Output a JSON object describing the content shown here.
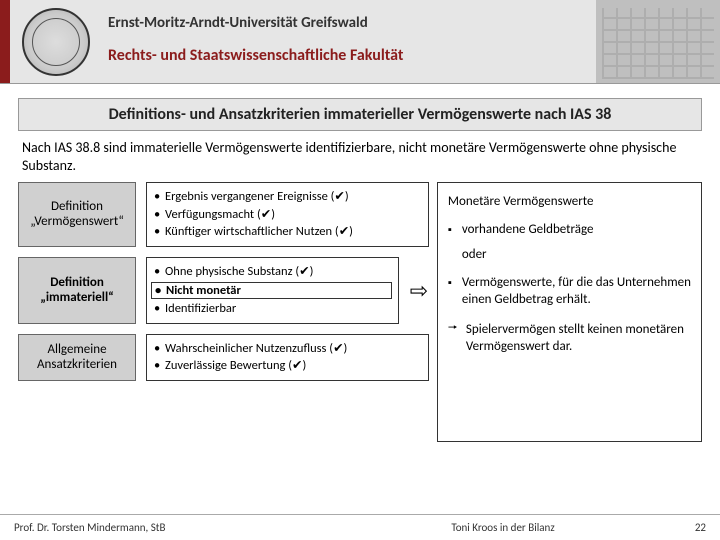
{
  "header": {
    "university": "Ernst-Moritz-Arndt-Universität Greifswald",
    "faculty": "Rechts- und Staatswissenschaftliche Fakultät"
  },
  "title": "Definitions- und Ansatzkriterien immaterieller Vermögenswerte nach IAS 38",
  "intro": "Nach IAS 38.8 sind immaterielle Vermögenswerte identifizierbare, nicht monetäre Vermögenswerte ohne physische Substanz.",
  "rows": [
    {
      "label": "Definition „Vermögenswert“",
      "bold": false,
      "items": [
        {
          "text": "Ergebnis vergangener Ereignisse   (✔)",
          "boxed": false
        },
        {
          "text": "Verfügungsmacht    (✔)",
          "boxed": false
        },
        {
          "text": "Künftiger wirtschaftlicher Nutzen (✔)",
          "boxed": false
        }
      ]
    },
    {
      "label": "Definition „immateriell“",
      "bold": true,
      "items": [
        {
          "text": "Ohne physische Substanz (✔)",
          "boxed": false
        },
        {
          "text": "Nicht monetär",
          "boxed": true
        },
        {
          "text": "Identifizierbar",
          "boxed": false
        }
      ]
    },
    {
      "label": "Allgemeine Ansatzkriterien",
      "bold": false,
      "items": [
        {
          "text": "Wahrscheinlicher Nutzenzufluss (✔)",
          "boxed": false
        },
        {
          "text": "Zuverlässige Bewertung   (✔)",
          "boxed": false
        }
      ]
    }
  ],
  "right": {
    "heading": "Monetäre Vermögenswerte",
    "item1": "vorhandene Geldbeträge",
    "oder": "oder",
    "item2": "Vermögenswerte, für die das Unternehmen einen Geldbetrag erhält.",
    "conclusion": "Spielervermögen stellt keinen monetären Vermögenswert dar."
  },
  "footer": {
    "left": "Prof. Dr. Torsten Mindermann, StB",
    "mid": "Toni Kroos in der Bilanz",
    "page": "22"
  },
  "colors": {
    "brand_red": "#8b1c1c",
    "header_bg": "#e6e6e6",
    "box_gray": "#d0d0d0"
  }
}
